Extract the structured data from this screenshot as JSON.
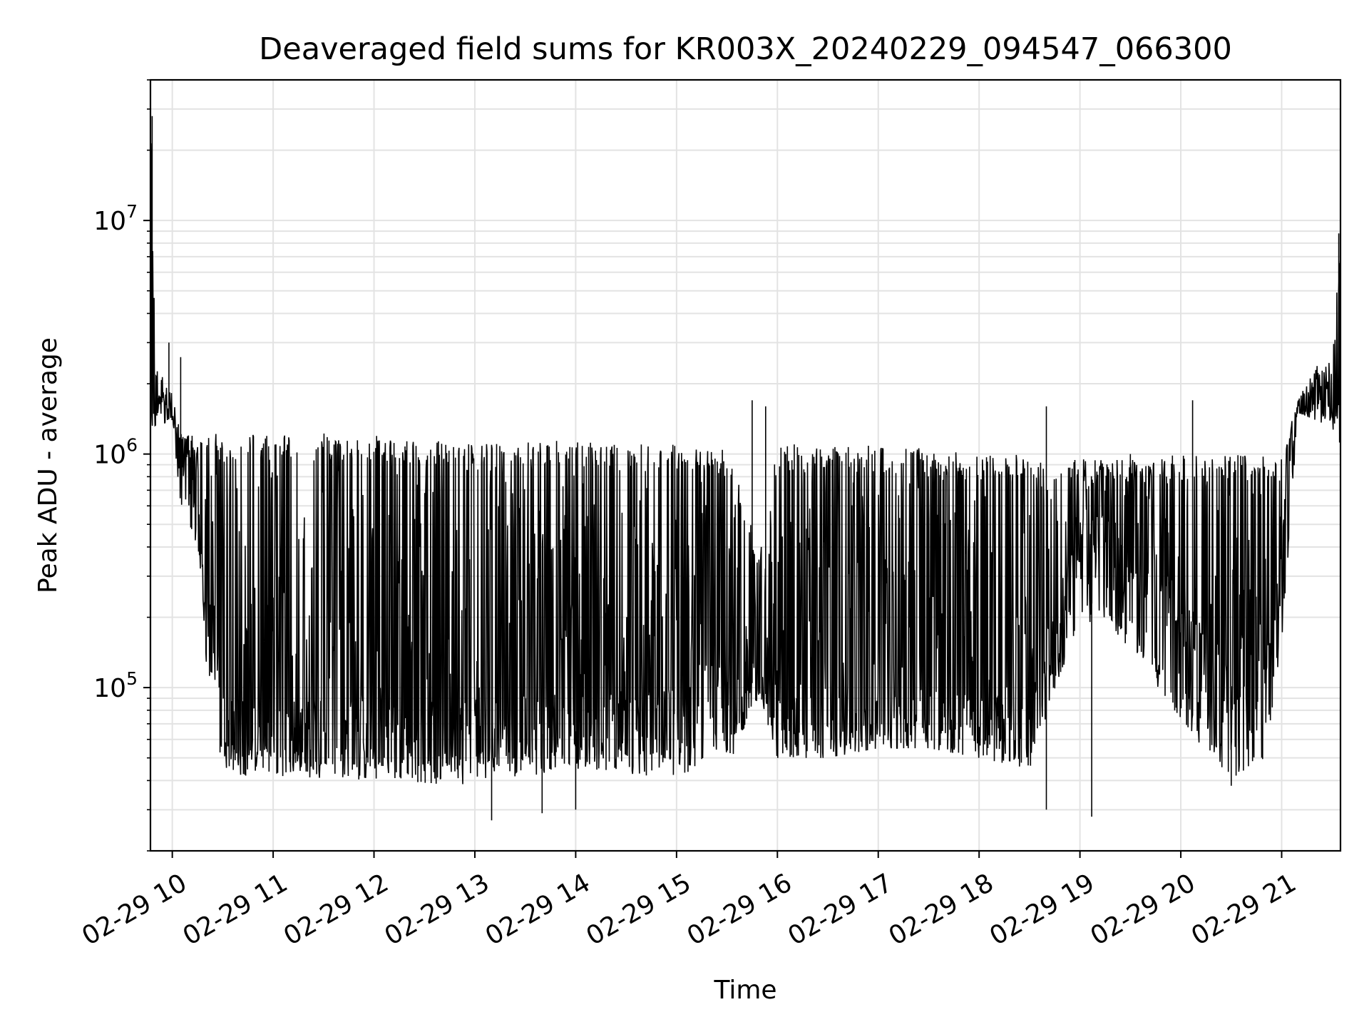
{
  "chart_data": {
    "type": "line",
    "title": "Deaveraged field sums for KR003X_20240229_094547_066300",
    "xlabel": "Time",
    "ylabel": "Peak ADU - average",
    "yscale": "log",
    "ylim": [
      20000,
      40000000
    ],
    "xlim": [
      "2024-02-29 09:47",
      "2024-02-29 21:35"
    ],
    "x_tick_labels": [
      "02-29 10",
      "02-29 11",
      "02-29 12",
      "02-29 13",
      "02-29 14",
      "02-29 15",
      "02-29 16",
      "02-29 17",
      "02-29 18",
      "02-29 19",
      "02-29 20",
      "02-29 21"
    ],
    "y_tick_labels": [
      {
        "base": "10",
        "exp": "5"
      },
      {
        "base": "10",
        "exp": "6"
      },
      {
        "base": "10",
        "exp": "7"
      }
    ],
    "grid": true,
    "line_color": "#000000",
    "grid_color": "#e3e3e3",
    "series": [
      {
        "x": [
          "2024-02-29 09:47",
          "2024-02-29 09:50",
          "2024-02-29 10:00",
          "2024-02-29 10:05",
          "2024-02-29 10:15",
          "2024-02-29 10:20",
          "2024-02-29 10:25",
          "2024-02-29 10:30",
          "2024-02-29 10:40",
          "2024-02-29 11:00",
          "2024-02-29 12:00",
          "2024-02-29 13:00",
          "2024-02-29 14:00",
          "2024-02-29 14:30",
          "2024-02-29 15:00",
          "2024-02-29 15:30",
          "2024-02-29 15:50",
          "2024-02-29 16:00",
          "2024-02-29 16:30",
          "2024-02-29 17:00",
          "2024-02-29 17:30",
          "2024-02-29 18:00",
          "2024-02-29 18:30",
          "2024-02-29 19:00",
          "2024-02-29 19:30",
          "2024-02-29 20:00",
          "2024-02-29 20:30",
          "2024-02-29 20:50",
          "2024-02-29 21:00",
          "2024-02-29 21:10",
          "2024-02-29 21:20",
          "2024-02-29 21:30",
          "2024-02-29 21:35"
        ],
        "upper": [
          30000000,
          2400000,
          1800000,
          1200000,
          1300000,
          1200000,
          1250000,
          1200000,
          1200000,
          1250000,
          1200000,
          1100000,
          1150000,
          1100000,
          1100000,
          1050000,
          400000,
          1100000,
          1100000,
          1100000,
          1050000,
          1000000,
          1000000,
          950000,
          950000,
          1000000,
          1000000,
          1000000,
          1000000,
          1700000,
          2400000,
          2500000,
          9000000
        ],
        "lower": [
          1200000,
          1300000,
          1400000,
          600000,
          400000,
          130000,
          70000,
          45000,
          42000,
          42000,
          40000,
          38000,
          45000,
          42000,
          42000,
          45000,
          90000,
          50000,
          50000,
          55000,
          55000,
          50000,
          45000,
          200000,
          150000,
          70000,
          40000,
          50000,
          150000,
          1500000,
          1400000,
          1300000,
          1100000
        ],
        "baseline": [
          1600000,
          1600000,
          1600000,
          900000,
          600000,
          250000,
          120000,
          65000,
          60000,
          60000,
          60000,
          60000,
          65000,
          70000,
          80000,
          90000,
          110000,
          65000,
          60000,
          65000,
          70000,
          65000,
          60000,
          400000,
          350000,
          250000,
          80000,
          100000,
          500000,
          1700000,
          1700000,
          1700000,
          1600000
        ],
        "peak_x": [
          "2024-02-29 09:48",
          "2024-02-29 09:58",
          "2024-02-29 10:05",
          "2024-02-29 13:10",
          "2024-02-29 15:45",
          "2024-02-29 15:53",
          "2024-02-29 16:05",
          "2024-02-29 16:10",
          "2024-02-29 18:40",
          "2024-02-29 19:30",
          "2024-02-29 20:07",
          "2024-02-29 21:34"
        ],
        "peak_y": [
          28000000,
          3000000,
          2600000,
          1000000,
          1700000,
          1600000,
          1000000,
          1100000,
          1600000,
          1000000,
          1700000,
          8800000
        ],
        "dip_x": [
          "2024-02-29 13:10",
          "2024-02-29 13:40",
          "2024-02-29 14:00",
          "2024-02-29 18:40",
          "2024-02-29 19:07",
          "2024-02-29 20:30"
        ],
        "dip_y": [
          27000,
          29000,
          30000,
          30000,
          28000,
          38000
        ]
      }
    ]
  }
}
